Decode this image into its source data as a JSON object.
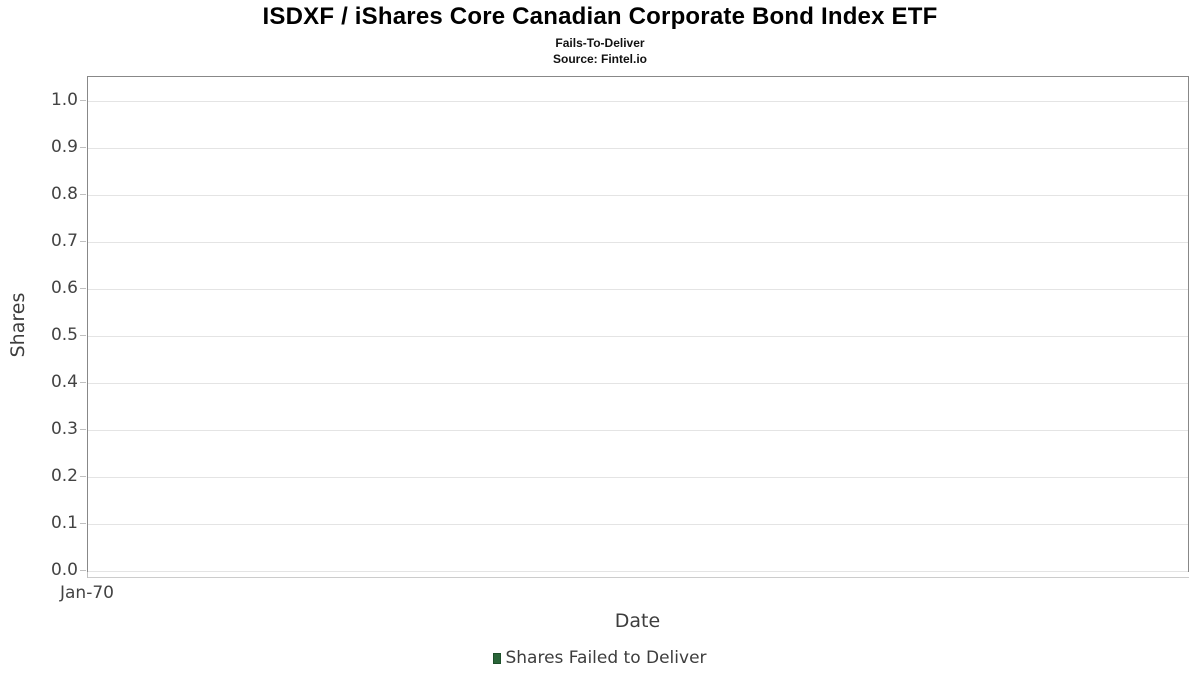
{
  "header": {
    "title": "ISDXF / iShares Core Canadian Corporate Bond Index ETF",
    "subtitle": "Fails-To-Deliver",
    "source": "Source: Fintel.io"
  },
  "chart_data": {
    "type": "bar",
    "title": "ISDXF / iShares Core Canadian Corporate Bond Index ETF",
    "subtitle": "Fails-To-Deliver",
    "source": "Source: Fintel.io",
    "xlabel": "Date",
    "ylabel": "Shares",
    "x_ticks": [
      "Jan-70"
    ],
    "y_ticks": [
      "1.0",
      "0.9",
      "0.8",
      "0.7",
      "0.6",
      "0.5",
      "0.4",
      "0.3",
      "0.2",
      "0.1",
      "0.0"
    ],
    "ylim": [
      0.0,
      1.05
    ],
    "grid": true,
    "legend_position": "bottom",
    "series": [
      {
        "name": "Shares Failed to Deliver",
        "color": "#2a6539",
        "x": [],
        "values": []
      }
    ]
  },
  "legend": {
    "label": "Shares Failed to Deliver",
    "marker_color": "#2a6539"
  },
  "colors": {
    "plot_border": "#888888",
    "gridline": "#e4e4e4",
    "tick_text": "#434343",
    "axis_title_text": "#3d3d3d",
    "title_text": "#000000"
  }
}
